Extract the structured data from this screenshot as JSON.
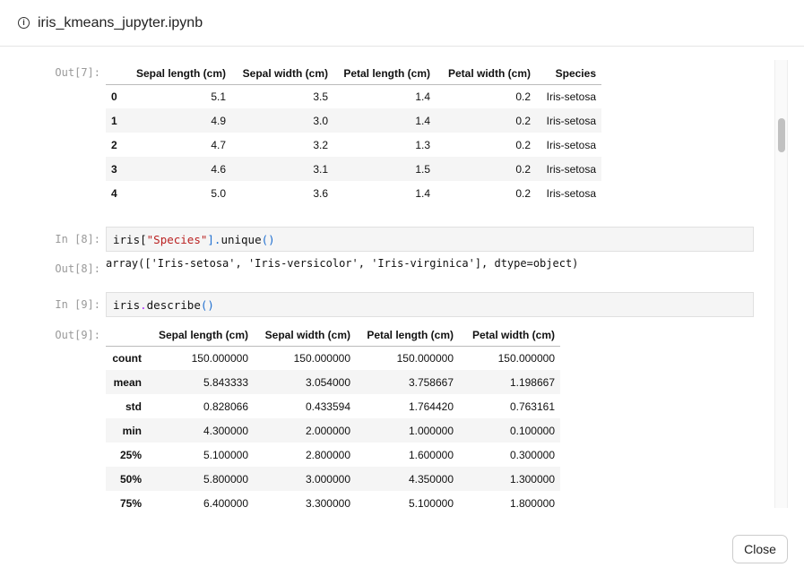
{
  "window": {
    "title": "iris_kmeans_jupyter.ipynb",
    "info_icon": "info-circle-icon"
  },
  "cells": {
    "out7": {
      "prompt": "Out[7]:",
      "columns": [
        "",
        "Sepal length (cm)",
        "Sepal width (cm)",
        "Petal length (cm)",
        "Petal width (cm)",
        "Species"
      ],
      "rows": [
        [
          "0",
          "5.1",
          "3.5",
          "1.4",
          "0.2",
          "Iris-setosa"
        ],
        [
          "1",
          "4.9",
          "3.0",
          "1.4",
          "0.2",
          "Iris-setosa"
        ],
        [
          "2",
          "4.7",
          "3.2",
          "1.3",
          "0.2",
          "Iris-setosa"
        ],
        [
          "3",
          "4.6",
          "3.1",
          "1.5",
          "0.2",
          "Iris-setosa"
        ],
        [
          "4",
          "5.0",
          "3.6",
          "1.4",
          "0.2",
          "Iris-setosa"
        ]
      ]
    },
    "in8": {
      "prompt": "In [8]:",
      "code": {
        "a": "iris[",
        "b": "\"Species\"",
        "c": "].",
        "d": "unique",
        "e": "()"
      }
    },
    "out8": {
      "prompt": "Out[8]:",
      "text": "array(['Iris-setosa', 'Iris-versicolor', 'Iris-virginica'], dtype=object)"
    },
    "in9": {
      "prompt": "In [9]:",
      "code": {
        "a": "iris",
        "b": ".",
        "c": "describe",
        "d": "()"
      }
    },
    "out9": {
      "prompt": "Out[9]:",
      "columns": [
        "",
        "Sepal length (cm)",
        "Sepal width (cm)",
        "Petal length (cm)",
        "Petal width (cm)"
      ],
      "rows": [
        [
          "count",
          "150.000000",
          "150.000000",
          "150.000000",
          "150.000000"
        ],
        [
          "mean",
          "5.843333",
          "3.054000",
          "3.758667",
          "1.198667"
        ],
        [
          "std",
          "0.828066",
          "0.433594",
          "1.764420",
          "0.763161"
        ],
        [
          "min",
          "4.300000",
          "2.000000",
          "1.000000",
          "0.100000"
        ],
        [
          "25%",
          "5.100000",
          "2.800000",
          "1.600000",
          "0.300000"
        ],
        [
          "50%",
          "5.800000",
          "3.000000",
          "4.350000",
          "1.300000"
        ],
        [
          "75%",
          "6.400000",
          "3.300000",
          "5.100000",
          "1.800000"
        ]
      ]
    }
  },
  "footer": {
    "close_label": "Close"
  }
}
